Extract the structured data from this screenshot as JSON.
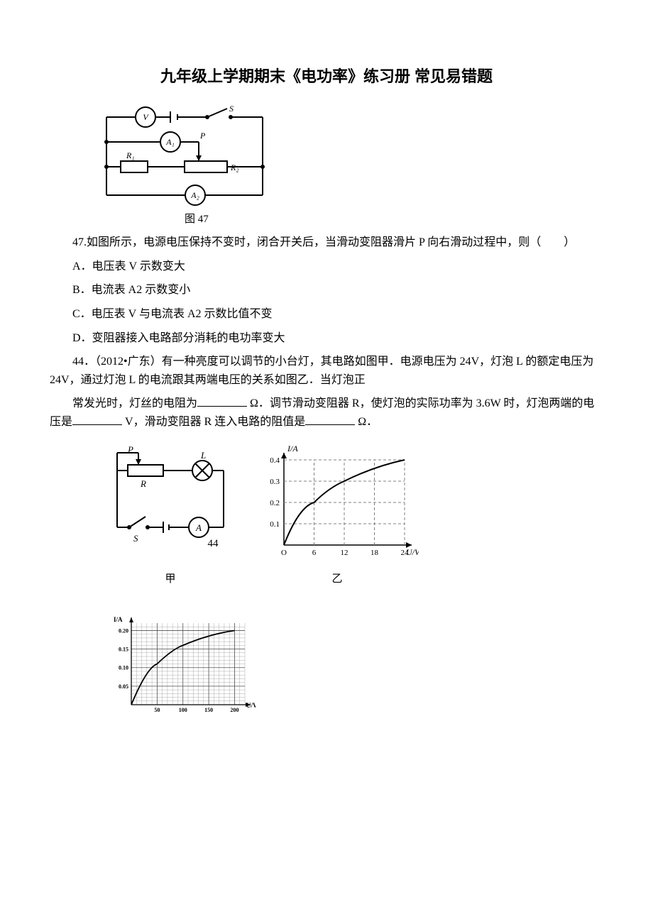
{
  "title": "九年级上学期期末《电功率》练习册 常见易错题",
  "fig47": {
    "label": "图 47",
    "meters": {
      "V": "V",
      "A1": "A₁",
      "A2": "A₂"
    },
    "components": {
      "R1": "R₁",
      "R2": "R₂",
      "P": "P",
      "S": "S"
    },
    "stroke": "#000000"
  },
  "q47": {
    "stem": "47.如图所示，电源电压保持不变时，闭合开关后，当滑动变阻器滑片 P 向右滑动过程中，则（　　）",
    "A": "A．电压表 V 示数变大",
    "B": "B．电流表 A2 示数变小",
    "C": "C．电压表 V 与电流表 A2 示数比值不变",
    "D": "D．变阻器接入电路部分消耗的电功率变大"
  },
  "q44": {
    "stem1": "44．（2012•广东）有一种亮度可以调节的小台灯，其电路如图甲．电源电压为 24V，灯泡 L 的额定电压为 24V，通过灯泡 L 的电流跟其两端电压的关系如图乙．当灯泡正",
    "stem2_a": "常发光时，灯丝的电阻为",
    "stem2_b": "Ω．调节滑动变阻器 R，使灯泡的实际功率为 3.6W 时，灯泡两端的电压是",
    "stem2_c": "V，滑动变阻器 R 连入电路的阻值是",
    "stem2_d": "Ω．"
  },
  "fig44": {
    "left": {
      "P": "P",
      "L": "L",
      "R": "R",
      "S": "S",
      "A": "A",
      "cap": "甲",
      "num": "44"
    },
    "right": {
      "ylabel": "I/A",
      "xlabel": "U/V",
      "cap": "乙",
      "yticks": [
        "0.1",
        "0.2",
        "0.3",
        "0.4"
      ],
      "xticks": [
        "O",
        "6",
        "12",
        "18",
        "24"
      ],
      "curve_color": "#000000",
      "grid_color": "#808080",
      "data_points": [
        [
          0,
          0
        ],
        [
          2,
          0.1
        ],
        [
          6,
          0.2
        ],
        [
          12,
          0.3
        ],
        [
          18,
          0.35
        ],
        [
          24,
          0.4
        ]
      ]
    }
  },
  "fig_extra": {
    "ylabel": "I/A",
    "xlabel": "U/V",
    "yticks": [
      "0.05",
      "0.10",
      "0.15",
      "0.20"
    ],
    "xticks": [
      "50",
      "100",
      "150",
      "200"
    ],
    "grid_color": "#999999",
    "curve_color": "#000000",
    "data_points": [
      [
        0,
        0
      ],
      [
        20,
        0.06
      ],
      [
        50,
        0.11
      ],
      [
        100,
        0.16
      ],
      [
        150,
        0.185
      ],
      [
        200,
        0.2
      ]
    ]
  }
}
